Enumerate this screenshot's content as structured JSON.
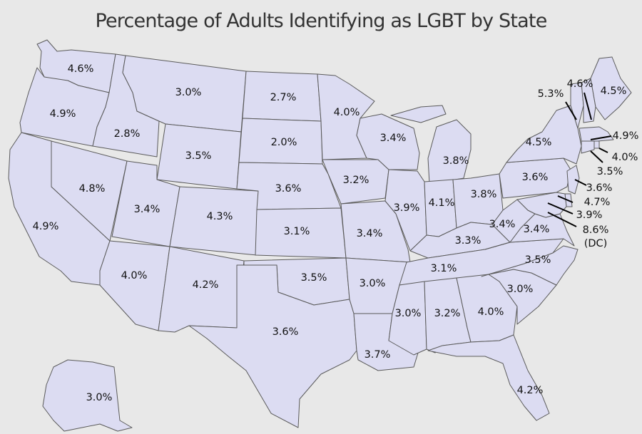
{
  "title": "Percentage of Adults Identifying as LGBT by State",
  "colors": {
    "background": "#e8e8e8",
    "state_fill": "#dcdcf2",
    "border": "#5a5a5a"
  },
  "states": [
    {
      "id": "WA",
      "value": "4.6%"
    },
    {
      "id": "OR",
      "value": "4.9%"
    },
    {
      "id": "CA",
      "value": "4.9%"
    },
    {
      "id": "NV",
      "value": "4.8%"
    },
    {
      "id": "ID",
      "value": "2.8%"
    },
    {
      "id": "MT",
      "value": "3.0%"
    },
    {
      "id": "WY",
      "value": "3.5%"
    },
    {
      "id": "UT",
      "value": "3.4%"
    },
    {
      "id": "CO",
      "value": "4.3%"
    },
    {
      "id": "AZ",
      "value": "4.0%"
    },
    {
      "id": "NM",
      "value": "4.2%"
    },
    {
      "id": "ND",
      "value": "2.7%"
    },
    {
      "id": "SD",
      "value": "2.0%"
    },
    {
      "id": "NE",
      "value": "3.6%"
    },
    {
      "id": "KS",
      "value": "3.1%"
    },
    {
      "id": "OK",
      "value": "3.5%"
    },
    {
      "id": "TX",
      "value": "3.6%"
    },
    {
      "id": "MN",
      "value": "4.0%"
    },
    {
      "id": "IA",
      "value": "3.2%"
    },
    {
      "id": "MO",
      "value": "3.4%"
    },
    {
      "id": "AR",
      "value": "3.0%"
    },
    {
      "id": "LA",
      "value": "3.7%"
    },
    {
      "id": "WI",
      "value": "3.4%"
    },
    {
      "id": "IL",
      "value": "3.9%"
    },
    {
      "id": "MI",
      "value": "3.8%"
    },
    {
      "id": "IN",
      "value": "4.1%"
    },
    {
      "id": "OH",
      "value": "3.8%"
    },
    {
      "id": "KY",
      "value": "3.3%"
    },
    {
      "id": "TN",
      "value": "3.1%"
    },
    {
      "id": "MS",
      "value": "3.0%"
    },
    {
      "id": "AL",
      "value": "3.2%"
    },
    {
      "id": "GA",
      "value": "4.0%"
    },
    {
      "id": "FL",
      "value": "4.2%"
    },
    {
      "id": "SC",
      "value": "3.0%"
    },
    {
      "id": "NC",
      "value": "3.5%"
    },
    {
      "id": "VA",
      "value": "3.4%"
    },
    {
      "id": "WV",
      "value": "3.4%"
    },
    {
      "id": "PA",
      "value": "3.6%"
    },
    {
      "id": "NY",
      "value": "4.5%"
    },
    {
      "id": "VT",
      "value": "5.3%"
    },
    {
      "id": "NH",
      "value": "4.6%"
    },
    {
      "id": "ME",
      "value": "4.5%"
    },
    {
      "id": "MA",
      "value": "4.9%"
    },
    {
      "id": "RI",
      "value": "4.0%"
    },
    {
      "id": "CT",
      "value": "3.5%"
    },
    {
      "id": "NJ",
      "value": "3.6%"
    },
    {
      "id": "DE",
      "value": "4.7%"
    },
    {
      "id": "MD",
      "value": "3.9%"
    },
    {
      "id": "DC",
      "value": "8.6%",
      "note": "(DC)"
    },
    {
      "id": "AK",
      "value": "3.0%"
    }
  ]
}
